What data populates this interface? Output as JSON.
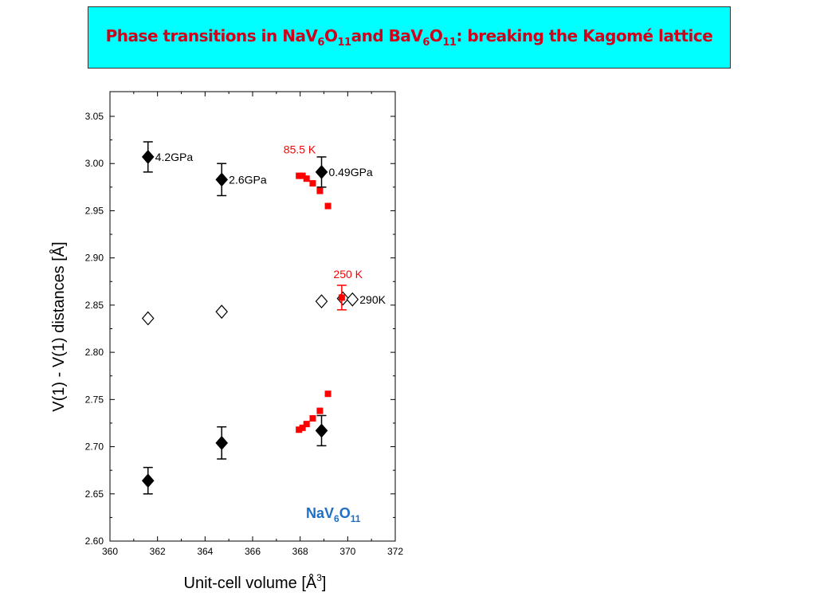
{
  "title": {
    "p1": "Phase transitions in NaV",
    "s1": "6",
    "p2": "O",
    "s2": "11",
    "p3": "and BaV",
    "s3": "6",
    "p4": "O",
    "s4": "11",
    "p5": ": breaking the Kagomé lattice"
  },
  "chart_data": {
    "type": "scatter",
    "xlabel": "Unit-cell volume [Å3]",
    "ylabel": "V(1) - V(1) distances [Å]",
    "xlim": [
      360,
      372
    ],
    "ylim": [
      2.6,
      3.05
    ],
    "xticks": [
      "360",
      "362",
      "364",
      "366",
      "368",
      "370",
      "372"
    ],
    "yticks": [
      "2.60",
      "2.65",
      "2.70",
      "2.75",
      "2.80",
      "2.85",
      "2.90",
      "2.95",
      "3.00",
      "3.05"
    ],
    "inset_label": {
      "p1": "NaV",
      "s1": "6",
      "p2": "O",
      "s2": "11"
    },
    "series": [
      {
        "name": "pressure-long",
        "marker": "filled-diamond",
        "color": "#000000",
        "x": [
          361.6,
          364.7,
          368.9
        ],
        "y": [
          3.007,
          2.983,
          2.991
        ],
        "err": [
          0.016,
          0.017,
          0.016
        ]
      },
      {
        "name": "pressure-short",
        "marker": "filled-diamond",
        "color": "#000000",
        "x": [
          361.6,
          364.7,
          368.9
        ],
        "y": [
          2.664,
          2.704,
          2.717
        ],
        "err": [
          0.014,
          0.017,
          0.016
        ]
      },
      {
        "name": "undistorted",
        "marker": "open-diamond",
        "color": "#000000",
        "x": [
          361.6,
          364.7,
          368.9,
          369.8,
          370.2
        ],
        "y": [
          2.836,
          2.843,
          2.854,
          2.857,
          2.856
        ]
      },
      {
        "name": "temperature-long",
        "marker": "square",
        "color": "#ff0000",
        "x": [
          367.95,
          368.1,
          368.27,
          368.53,
          368.83,
          369.17
        ],
        "y": [
          2.987,
          2.987,
          2.984,
          2.979,
          2.971,
          2.955
        ]
      },
      {
        "name": "temperature-short",
        "marker": "square",
        "color": "#ff0000",
        "x": [
          367.95,
          368.1,
          368.27,
          368.53,
          368.83,
          369.17
        ],
        "y": [
          2.718,
          2.72,
          2.724,
          2.73,
          2.738,
          2.756
        ]
      },
      {
        "name": "temperature-250K",
        "marker": "square",
        "color": "#ff0000",
        "x": [
          369.75
        ],
        "y": [
          2.858
        ],
        "err": [
          0.013
        ]
      }
    ],
    "annotations": [
      {
        "text": "4.2GPa",
        "x": 361.9,
        "y": 3.007,
        "color": "#000000"
      },
      {
        "text": "2.6GPa",
        "x": 365.0,
        "y": 2.983,
        "color": "#000000"
      },
      {
        "text": "0.49GPa",
        "x": 369.2,
        "y": 2.991,
        "color": "#000000"
      },
      {
        "text": "85.5 K",
        "x": 367.3,
        "y": 3.015,
        "color": "#ff0000"
      },
      {
        "text": "250 K",
        "x": 369.4,
        "y": 2.883,
        "color": "#ff0000"
      },
      {
        "text": "290K",
        "x": 370.5,
        "y": 2.856,
        "color": "#000000"
      }
    ]
  }
}
